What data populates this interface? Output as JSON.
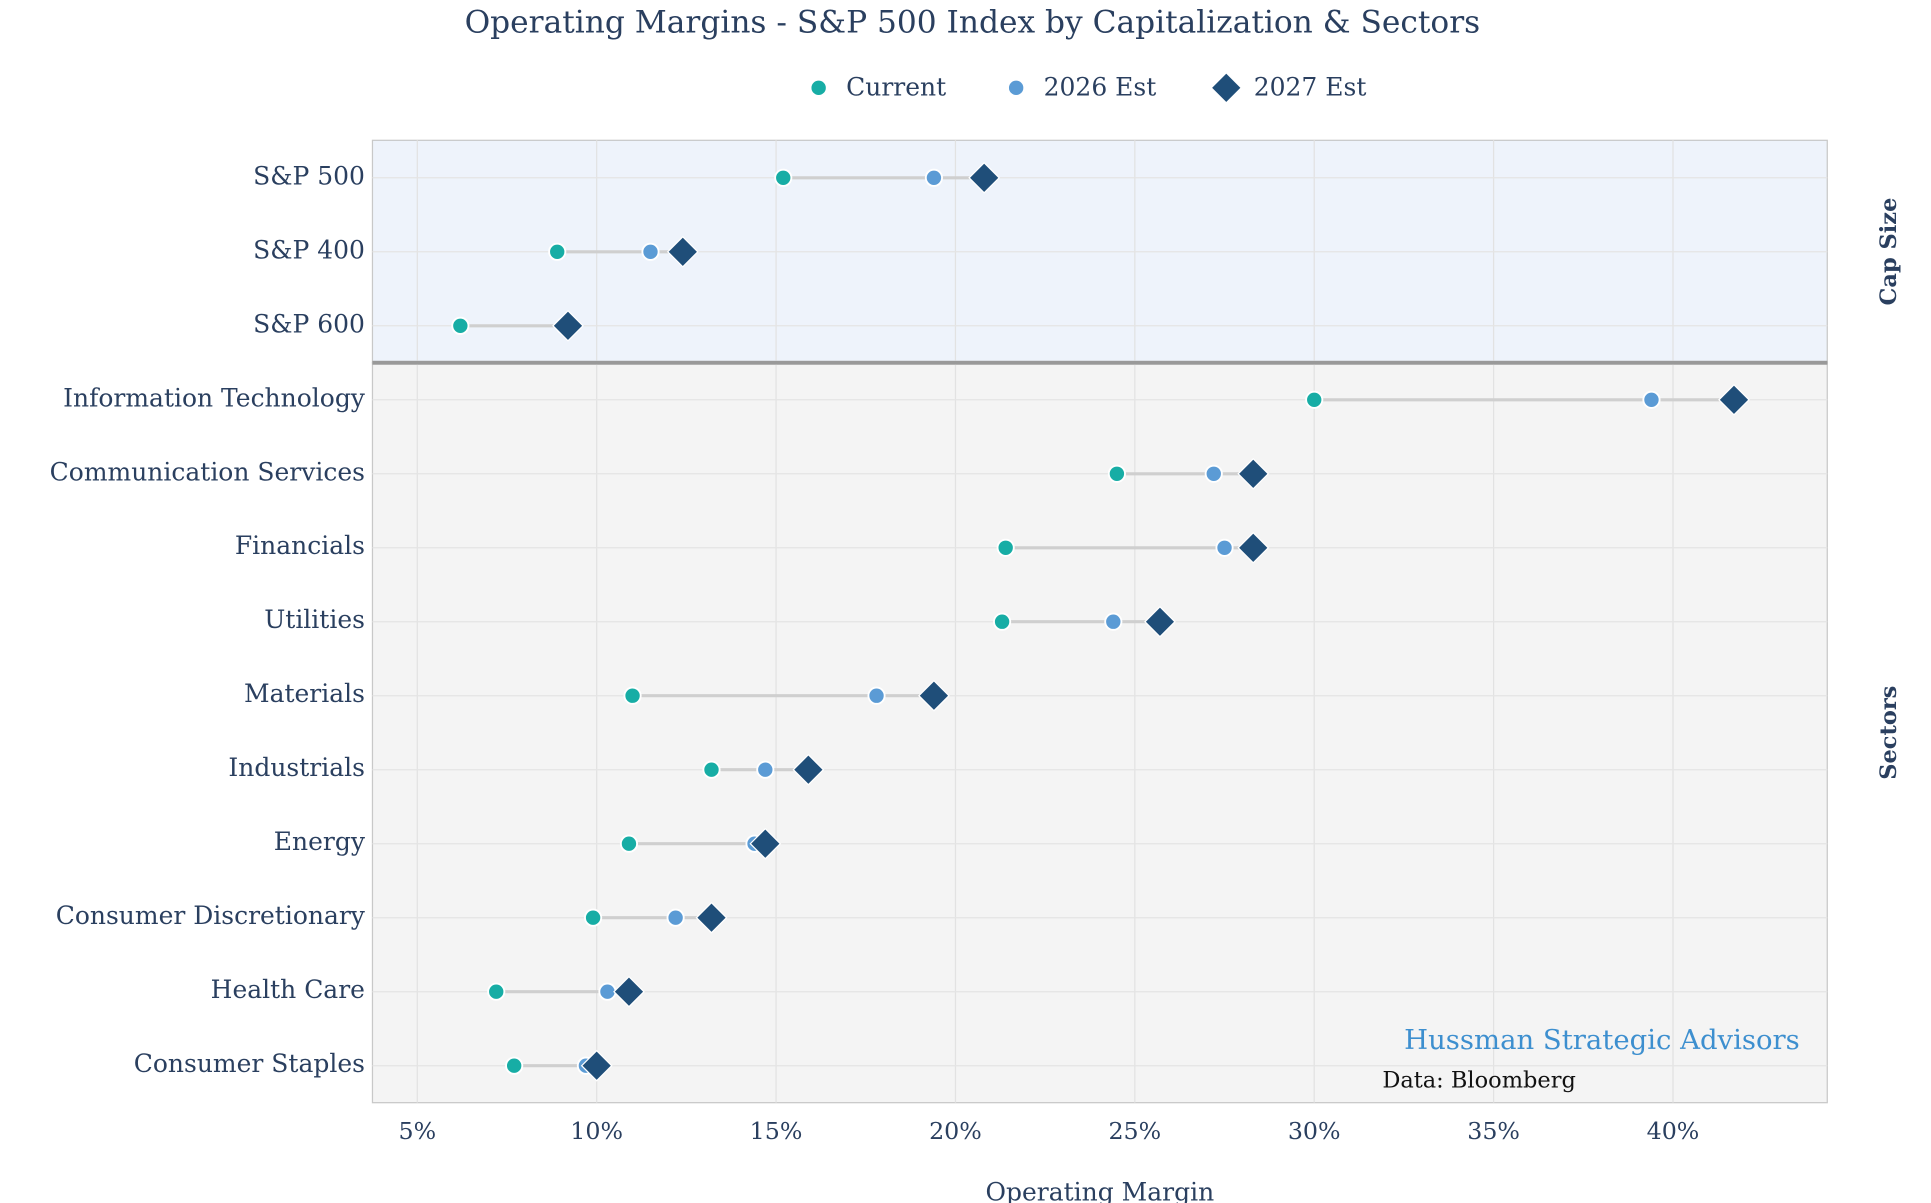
{
  "chart_data": {
    "type": "dumbbell",
    "title": "Operating Margins - S&P 500 Index by Capitalization & Sectors",
    "xlabel": "Operating Margin",
    "panels": [
      {
        "label": "Cap Size",
        "categories": [
          "S&P 500",
          "S&P 400",
          "S&P 600"
        ]
      },
      {
        "label": "Sectors",
        "categories": [
          "Information Technology",
          "Communication Services",
          "Financials",
          "Utilities",
          "Materials",
          "Industrials",
          "Energy",
          "Consumer Discretionary",
          "Health Care",
          "Consumer Staples"
        ]
      }
    ],
    "series": [
      {
        "name": "Current",
        "color": "#17ada5",
        "marker": "circle",
        "values": [
          15.2,
          8.9,
          6.2,
          30.0,
          24.5,
          21.4,
          21.3,
          11.0,
          13.2,
          10.9,
          9.9,
          7.2,
          7.7
        ]
      },
      {
        "name": "2026 Est",
        "color": "#5b9bd5",
        "marker": "circle",
        "values": [
          19.4,
          11.5,
          9.1,
          39.4,
          27.2,
          27.5,
          24.4,
          17.8,
          14.7,
          14.4,
          12.2,
          10.3,
          9.7
        ]
      },
      {
        "name": "2027 Est",
        "color": "#1f4e79",
        "marker": "diamond",
        "values": [
          20.8,
          12.4,
          9.2,
          41.7,
          28.3,
          28.3,
          25.7,
          19.4,
          15.9,
          14.7,
          13.2,
          10.9,
          10.0
        ]
      }
    ],
    "xlim": [
      3.75,
      44.3
    ],
    "xticks": [
      {
        "value": 5,
        "label": "5%"
      },
      {
        "value": 10,
        "label": "10%"
      },
      {
        "value": 15,
        "label": "15%"
      },
      {
        "value": 20,
        "label": "20%"
      },
      {
        "value": 25,
        "label": "25%"
      },
      {
        "value": 30,
        "label": "30%"
      },
      {
        "value": 35,
        "label": "35%"
      },
      {
        "value": 40,
        "label": "40%"
      }
    ],
    "grid": true,
    "annotations": [
      "Hussman Strategic Advisors",
      "Data: Bloomberg"
    ]
  }
}
